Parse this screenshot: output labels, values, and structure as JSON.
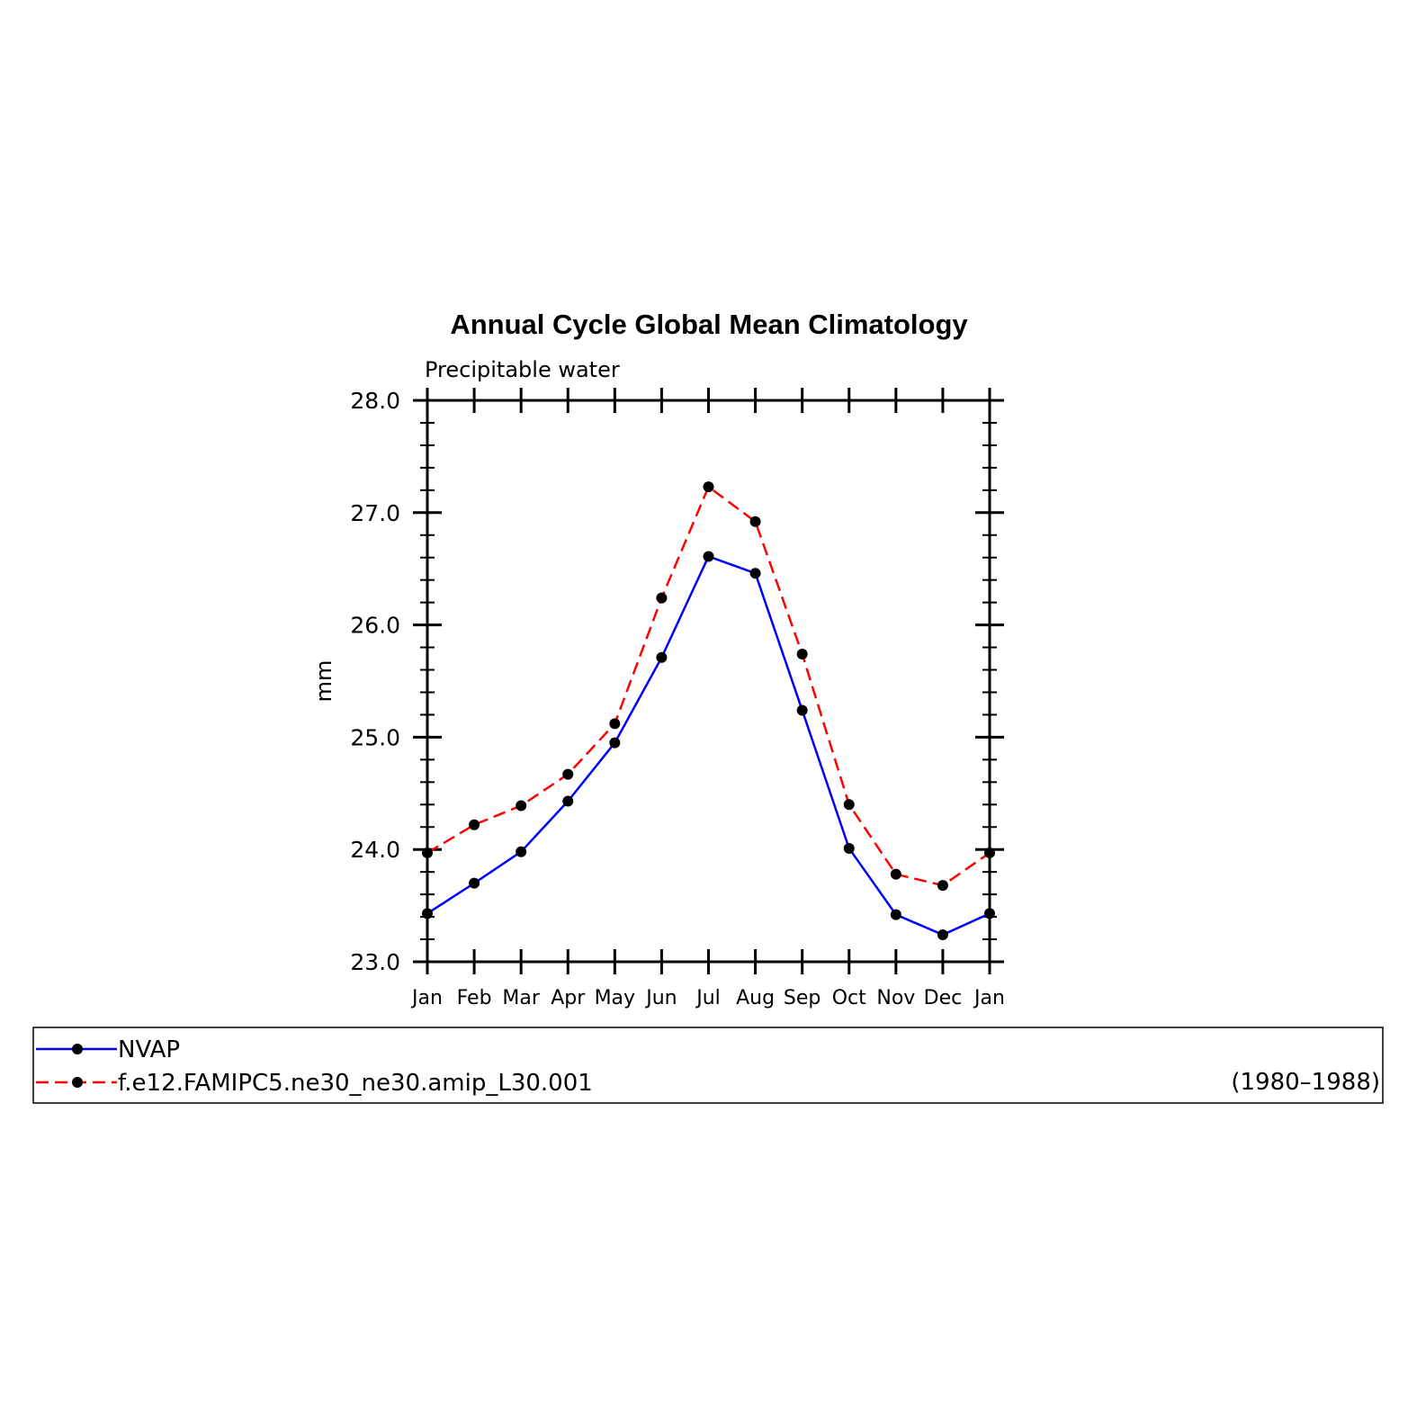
{
  "chart_data": {
    "type": "line",
    "title": "Annual Cycle Global Mean Climatology",
    "subtitle": "Precipitable water",
    "xlabel": "",
    "ylabel": "mm",
    "categories": [
      "Jan",
      "Feb",
      "Mar",
      "Apr",
      "May",
      "Jun",
      "Jul",
      "Aug",
      "Sep",
      "Oct",
      "Nov",
      "Dec",
      "Jan"
    ],
    "ylim": [
      23.0,
      28.0
    ],
    "yticks": [
      23.0,
      24.0,
      25.0,
      26.0,
      27.0,
      28.0
    ],
    "ytick_labels": [
      "23.0",
      "24.0",
      "25.0",
      "26.0",
      "27.0",
      "28.0"
    ],
    "grid": false,
    "legend_position": "bottom",
    "series": [
      {
        "name": "NVAP",
        "color": "#0000ff",
        "line_style": "solid",
        "marker": "filled-circle",
        "values": [
          23.43,
          23.7,
          23.98,
          24.43,
          24.95,
          25.71,
          26.61,
          26.46,
          25.24,
          24.01,
          23.42,
          23.24,
          23.43
        ]
      },
      {
        "name": "f.e12.FAMIPC5.ne30_ne30.amip_L30.001",
        "color": "#ff0000",
        "line_style": "dashed",
        "marker": "filled-circle",
        "values": [
          23.97,
          24.22,
          24.39,
          24.67,
          25.12,
          26.24,
          27.23,
          26.92,
          25.74,
          24.4,
          23.78,
          23.68,
          23.97
        ]
      }
    ],
    "legend_note": "(1980–1988)",
    "marker_color": "#000000"
  }
}
